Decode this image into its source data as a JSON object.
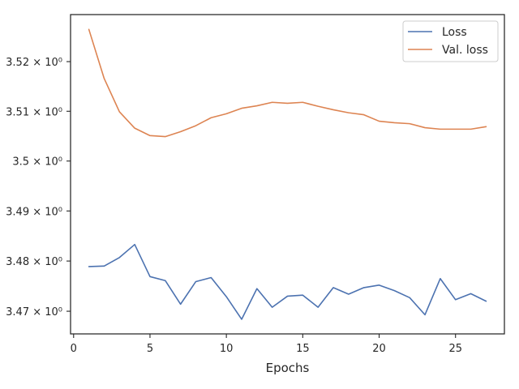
{
  "chart_data": {
    "type": "line",
    "title": "",
    "xlabel": "Epochs",
    "ylabel": "",
    "x": [
      1,
      2,
      3,
      4,
      5,
      6,
      7,
      8,
      9,
      10,
      11,
      12,
      13,
      14,
      15,
      16,
      17,
      18,
      19,
      20,
      21,
      22,
      23,
      24,
      25,
      26,
      27
    ],
    "series": [
      {
        "name": "Loss",
        "color": "#4c72b0",
        "values": [
          3.4789,
          3.479,
          3.4807,
          3.4833,
          3.4769,
          3.4761,
          3.4714,
          3.4759,
          3.4767,
          3.4729,
          3.4684,
          3.4745,
          3.4708,
          3.473,
          3.4732,
          3.4708,
          3.4747,
          3.4734,
          3.4747,
          3.4752,
          3.4741,
          3.4727,
          3.4693,
          3.4765,
          3.4723,
          3.4735,
          3.472
        ]
      },
      {
        "name": "Val. loss",
        "color": "#dd8452",
        "values": [
          3.5265,
          3.5166,
          3.5099,
          3.5066,
          3.5051,
          3.5049,
          3.5059,
          3.5071,
          3.5087,
          3.5095,
          3.5106,
          3.5111,
          3.5118,
          3.5116,
          3.5118,
          3.511,
          3.5103,
          3.5097,
          3.5093,
          3.508,
          3.5077,
          3.5075,
          3.5067,
          3.5064,
          3.5064,
          3.5064,
          3.5069
        ]
      }
    ],
    "xlim": [
      -0.2,
      28.2
    ],
    "ylim": [
      3.4655,
      3.5295
    ],
    "xticks": [
      0,
      5,
      10,
      15,
      20,
      25
    ],
    "xtick_labels": [
      "0",
      "5",
      "10",
      "15",
      "20",
      "25"
    ],
    "yticks": [
      3.47,
      3.48,
      3.49,
      3.5,
      3.51,
      3.52
    ],
    "ytick_labels": [
      "3.47 × 10⁰",
      "3.48 × 10⁰",
      "3.49 × 10⁰",
      "3.5 × 10⁰",
      "3.51 × 10⁰",
      "3.52 × 10⁰"
    ],
    "yscale": "log",
    "grid": false,
    "legend_position": "top-right"
  }
}
